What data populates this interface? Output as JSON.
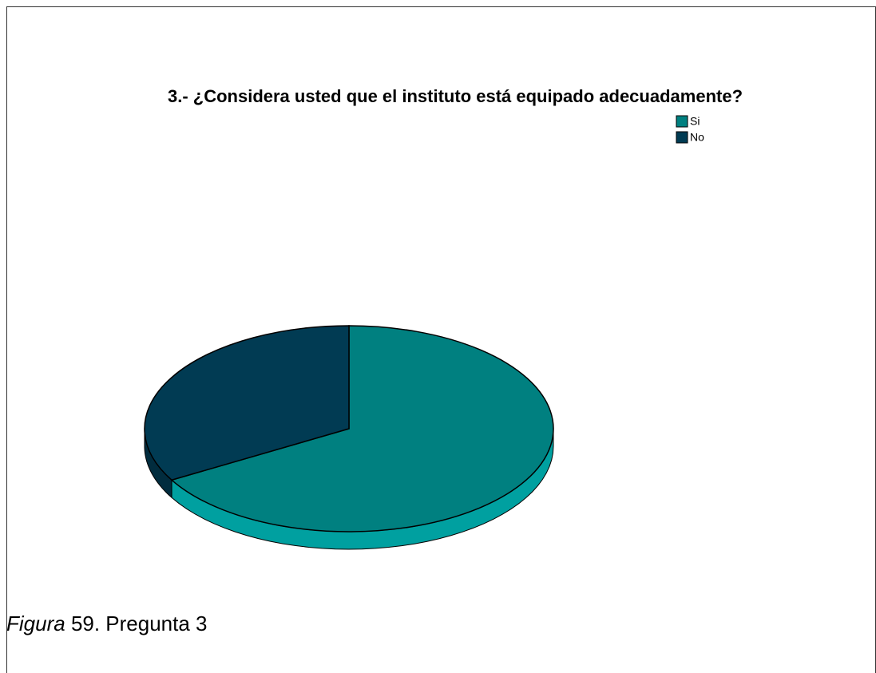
{
  "chart_data": {
    "type": "pie",
    "title": "3.- ¿Considera usted que el instituto está equipado adecuadamente?",
    "categories": [
      "Si",
      "No"
    ],
    "values": [
      66.7,
      33.3
    ],
    "colors": [
      "#008080",
      "#013b53"
    ],
    "legend": "top-right"
  },
  "caption": {
    "label": "Figura",
    "text": "59. Pregunta 3"
  }
}
